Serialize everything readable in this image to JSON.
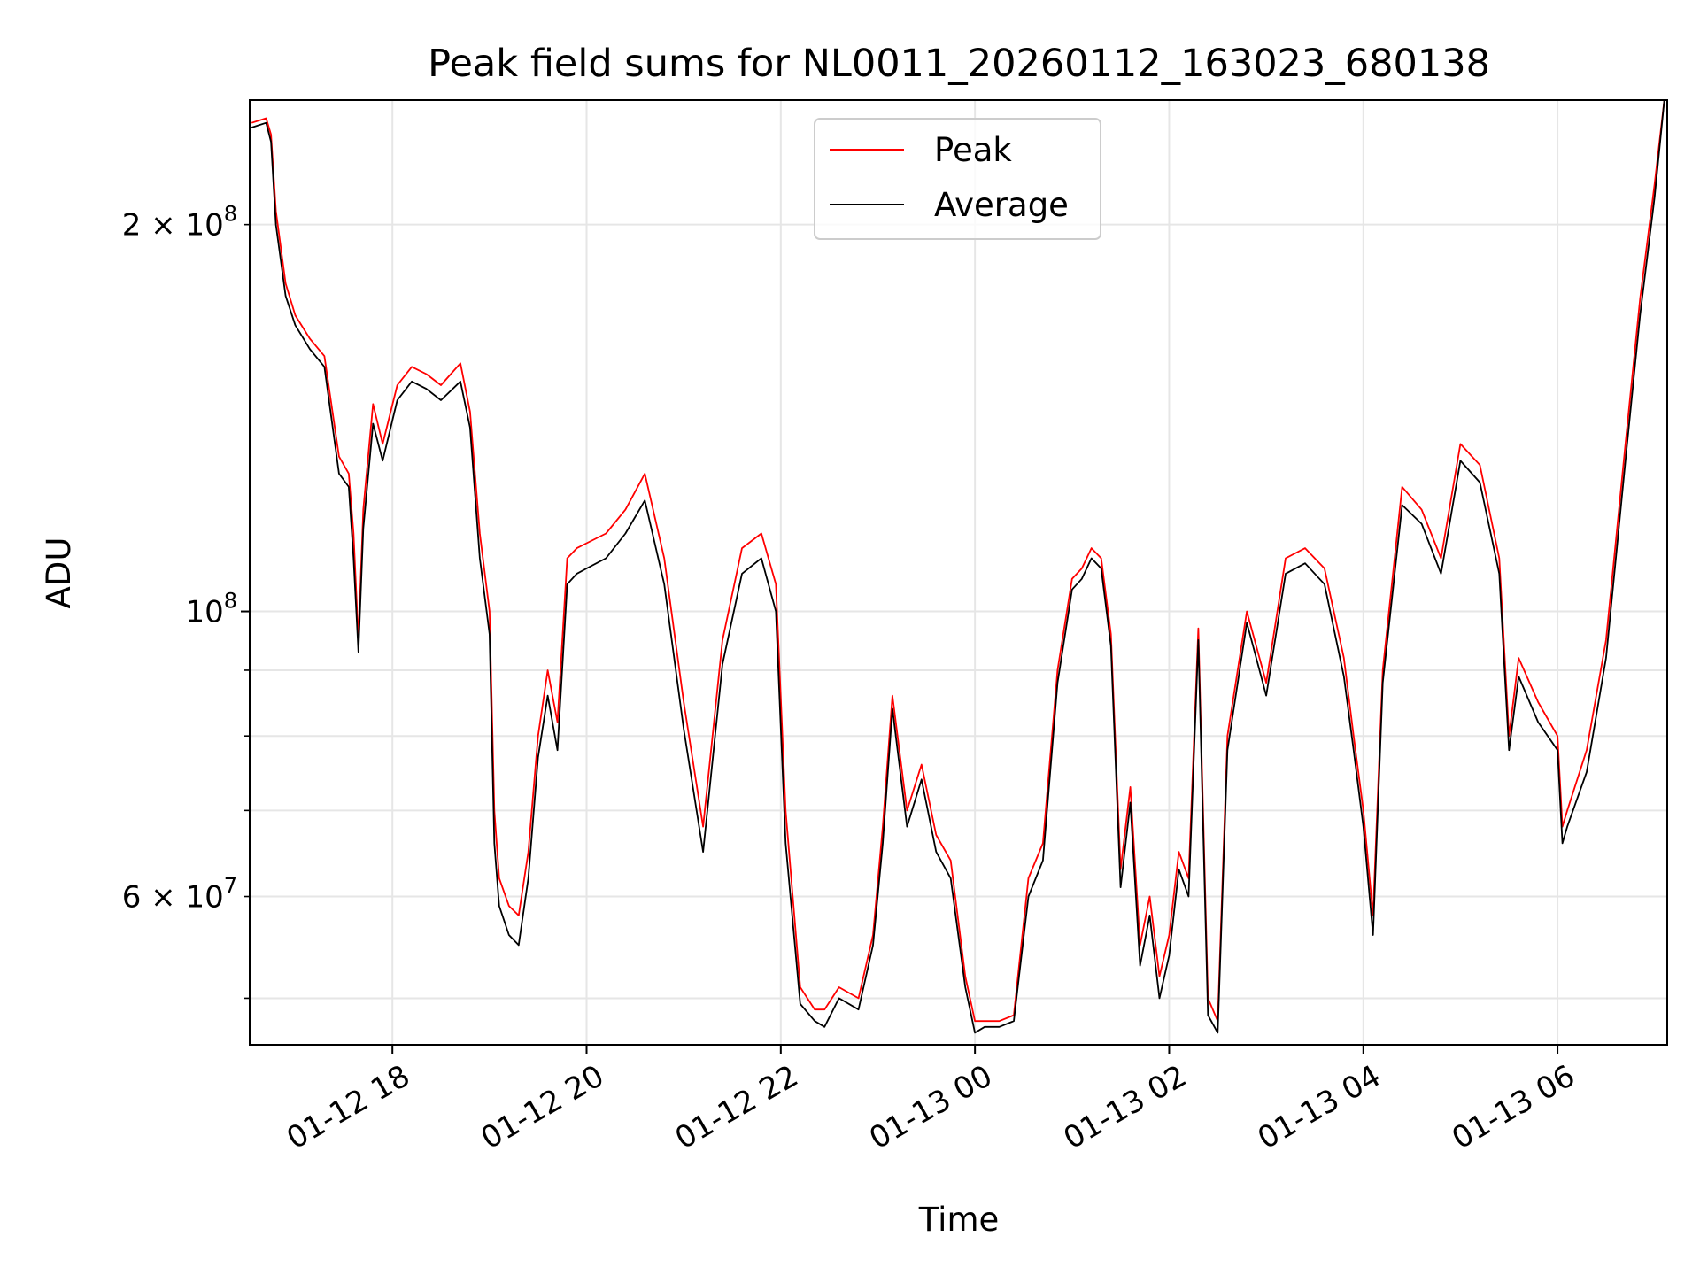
{
  "chart_data": {
    "type": "line",
    "title": "Peak field sums for NL0011_20260112_163023_680138",
    "xlabel": "Time",
    "ylabel": "ADU",
    "yscale": "log",
    "ylim": [
      46000000,
      250000000
    ],
    "xlim_hours_since_2026_01_12_00_00": [
      16.53,
      31.13
    ],
    "grid": true,
    "legend": {
      "location": "upper-center",
      "entries": [
        "Peak",
        "Average"
      ]
    },
    "x_ticks": [
      {
        "hour": 18,
        "label": "01-12 18"
      },
      {
        "hour": 20,
        "label": "01-12 20"
      },
      {
        "hour": 22,
        "label": "01-12 22"
      },
      {
        "hour": 24,
        "label": "01-13 00"
      },
      {
        "hour": 26,
        "label": "01-13 02"
      },
      {
        "hour": 28,
        "label": "01-13 04"
      },
      {
        "hour": 30,
        "label": "01-13 06"
      }
    ],
    "y_major_ticks": [
      {
        "value": 100000000,
        "base": "10",
        "exp": "8"
      }
    ],
    "y_minor_ticks": [
      {
        "value": 50000000,
        "mant": "",
        "exp": ""
      },
      {
        "value": 60000000,
        "mant": "6",
        "exp": "7"
      },
      {
        "value": 70000000,
        "mant": "",
        "exp": ""
      },
      {
        "value": 80000000,
        "mant": "",
        "exp": ""
      },
      {
        "value": 90000000,
        "mant": "",
        "exp": ""
      },
      {
        "value": 200000000,
        "mant": "2",
        "exp": "8"
      }
    ],
    "series": [
      {
        "name": "Peak",
        "color": "#ff0000",
        "x_hours": [
          16.55,
          16.7,
          16.75,
          16.8,
          16.9,
          17.0,
          17.15,
          17.3,
          17.45,
          17.55,
          17.6,
          17.65,
          17.7,
          17.8,
          17.9,
          18.05,
          18.2,
          18.35,
          18.5,
          18.7,
          18.8,
          18.9,
          19.0,
          19.05,
          19.1,
          19.2,
          19.3,
          19.4,
          19.5,
          19.6,
          19.7,
          19.8,
          19.9,
          20.0,
          20.2,
          20.4,
          20.6,
          20.8,
          21.0,
          21.2,
          21.4,
          21.6,
          21.8,
          21.95,
          22.05,
          22.2,
          22.35,
          22.45,
          22.6,
          22.8,
          22.95,
          23.05,
          23.15,
          23.3,
          23.45,
          23.6,
          23.75,
          23.9,
          24.0,
          24.1,
          24.25,
          24.4,
          24.55,
          24.7,
          24.85,
          25.0,
          25.1,
          25.2,
          25.3,
          25.4,
          25.5,
          25.6,
          25.7,
          25.8,
          25.9,
          26.0,
          26.1,
          26.2,
          26.3,
          26.4,
          26.5,
          26.6,
          26.8,
          27.0,
          27.2,
          27.4,
          27.6,
          27.8,
          27.9,
          28.0,
          28.1,
          28.2,
          28.4,
          28.6,
          28.8,
          29.0,
          29.2,
          29.4,
          29.5,
          29.6,
          29.8,
          30.0,
          30.05,
          30.1,
          30.3,
          30.5,
          30.7,
          30.85,
          31.0,
          31.1
        ],
        "values": [
          240000000,
          242000000,
          235000000,
          205000000,
          180000000,
          170000000,
          163000000,
          158000000,
          132000000,
          128000000,
          115000000,
          95000000,
          120000000,
          145000000,
          135000000,
          150000000,
          155000000,
          153000000,
          150000000,
          156000000,
          143000000,
          115000000,
          100000000,
          70000000,
          62000000,
          59000000,
          58000000,
          65000000,
          80000000,
          90000000,
          82000000,
          110000000,
          112000000,
          113000000,
          115000000,
          120000000,
          128000000,
          110000000,
          85000000,
          68000000,
          95000000,
          112000000,
          115000000,
          105000000,
          70000000,
          51000000,
          49000000,
          49000000,
          51000000,
          50000000,
          56000000,
          68000000,
          86000000,
          70000000,
          76000000,
          67000000,
          64000000,
          52000000,
          48000000,
          48000000,
          48000000,
          48500000,
          62000000,
          66000000,
          90000000,
          106000000,
          108000000,
          112000000,
          110000000,
          96000000,
          63000000,
          73000000,
          55000000,
          60000000,
          52000000,
          56000000,
          65000000,
          62000000,
          97000000,
          50000000,
          48000000,
          80000000,
          100000000,
          88000000,
          110000000,
          112000000,
          108000000,
          92000000,
          80000000,
          70000000,
          58000000,
          90000000,
          125000000,
          120000000,
          110000000,
          135000000,
          130000000,
          110000000,
          80000000,
          92000000,
          85000000,
          80000000,
          68000000,
          70000000,
          78000000,
          95000000,
          135000000,
          175000000,
          215000000,
          250000000
        ]
      },
      {
        "name": "Average",
        "color": "#000000",
        "x_hours": [
          16.55,
          16.7,
          16.75,
          16.8,
          16.9,
          17.0,
          17.15,
          17.3,
          17.45,
          17.55,
          17.6,
          17.65,
          17.7,
          17.8,
          17.9,
          18.05,
          18.2,
          18.35,
          18.5,
          18.7,
          18.8,
          18.9,
          19.0,
          19.05,
          19.1,
          19.2,
          19.3,
          19.4,
          19.5,
          19.6,
          19.7,
          19.8,
          19.9,
          20.0,
          20.2,
          20.4,
          20.6,
          20.8,
          21.0,
          21.2,
          21.4,
          21.6,
          21.8,
          21.95,
          22.05,
          22.2,
          22.35,
          22.45,
          22.6,
          22.8,
          22.95,
          23.05,
          23.15,
          23.3,
          23.45,
          23.6,
          23.75,
          23.9,
          24.0,
          24.1,
          24.25,
          24.4,
          24.55,
          24.7,
          24.85,
          25.0,
          25.1,
          25.2,
          25.3,
          25.4,
          25.5,
          25.6,
          25.7,
          25.8,
          25.9,
          26.0,
          26.1,
          26.2,
          26.3,
          26.4,
          26.5,
          26.6,
          26.8,
          27.0,
          27.2,
          27.4,
          27.6,
          27.8,
          27.9,
          28.0,
          28.1,
          28.2,
          28.4,
          28.6,
          28.8,
          29.0,
          29.2,
          29.4,
          29.5,
          29.6,
          29.8,
          30.0,
          30.05,
          30.1,
          30.3,
          30.5,
          30.7,
          30.85,
          31.0,
          31.1
        ],
        "values": [
          238000000,
          240000000,
          232000000,
          200000000,
          176000000,
          167000000,
          160000000,
          155000000,
          128000000,
          125000000,
          110000000,
          93000000,
          116000000,
          140000000,
          131000000,
          146000000,
          151000000,
          149000000,
          146000000,
          151000000,
          139000000,
          110000000,
          96000000,
          66000000,
          59000000,
          56000000,
          55000000,
          62000000,
          77000000,
          86000000,
          78000000,
          105000000,
          107000000,
          108000000,
          110000000,
          115000000,
          122000000,
          105000000,
          81000000,
          65000000,
          91000000,
          107000000,
          110000000,
          100000000,
          66000000,
          49500000,
          48000000,
          47500000,
          50000000,
          49000000,
          55000000,
          66000000,
          84000000,
          68000000,
          74000000,
          65000000,
          62000000,
          51000000,
          47000000,
          47500000,
          47500000,
          48000000,
          60000000,
          64000000,
          88000000,
          104000000,
          106000000,
          110000000,
          108000000,
          94000000,
          61000000,
          71000000,
          53000000,
          58000000,
          50000000,
          54000000,
          63000000,
          60000000,
          95000000,
          48500000,
          47000000,
          78000000,
          98000000,
          86000000,
          107000000,
          109000000,
          105000000,
          89000000,
          78000000,
          68000000,
          56000000,
          88000000,
          121000000,
          117000000,
          107000000,
          131000000,
          126000000,
          107000000,
          78000000,
          89000000,
          82000000,
          78000000,
          66000000,
          68000000,
          75000000,
          92000000,
          131000000,
          170000000,
          210000000,
          250000000
        ]
      }
    ]
  }
}
